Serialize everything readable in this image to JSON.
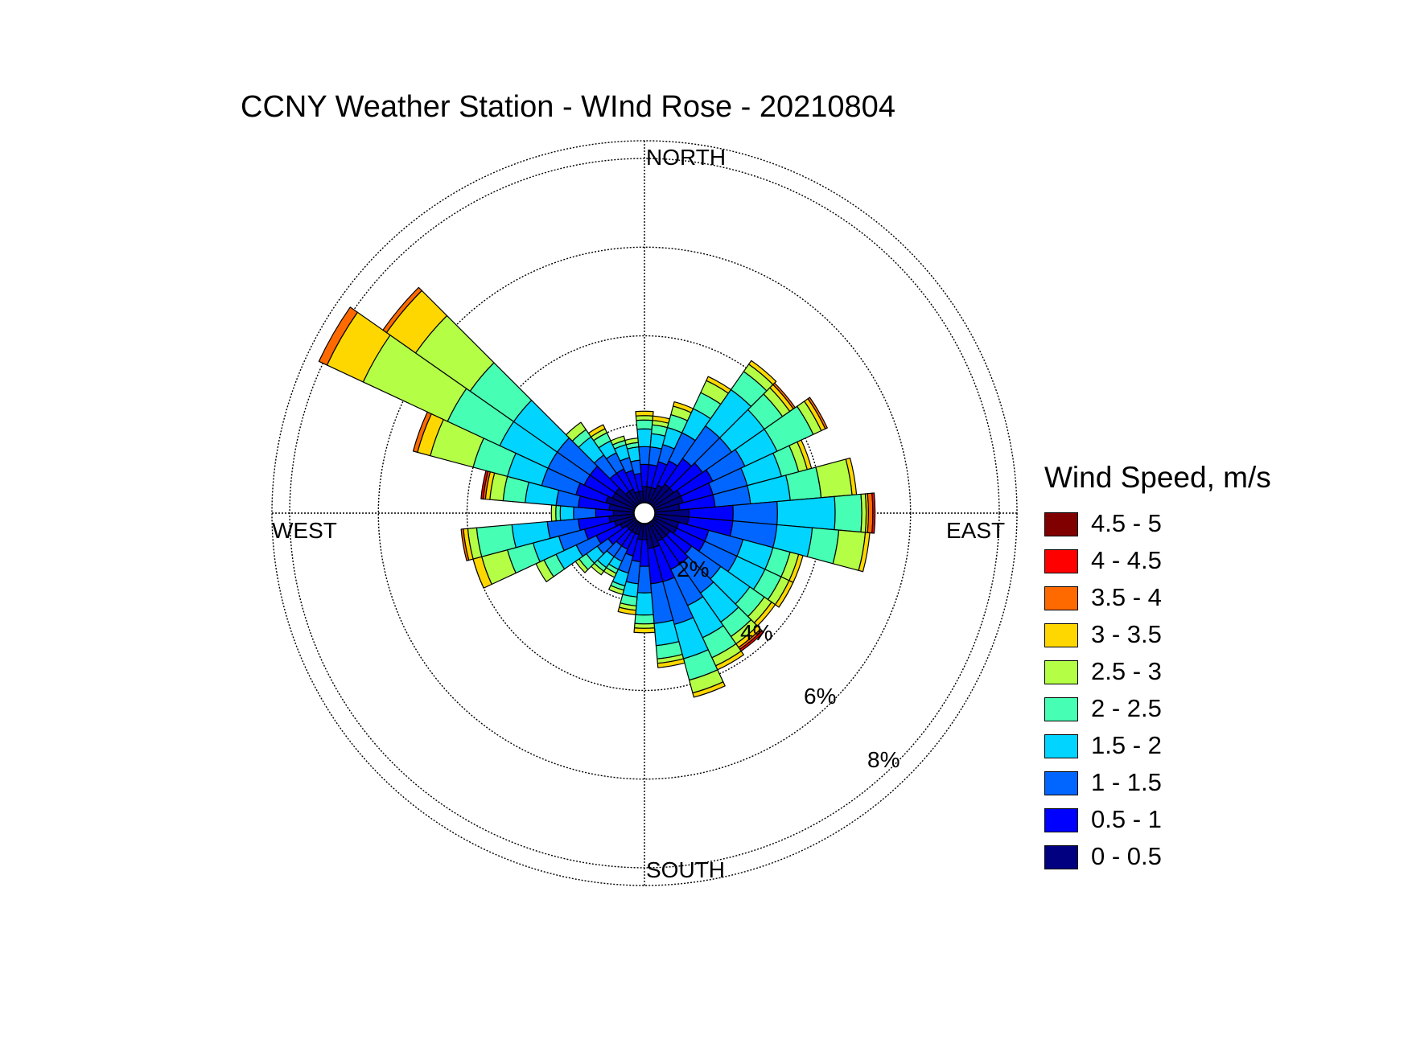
{
  "chart_data": {
    "type": "wind-rose",
    "title": "CCNY Weather Station - WInd Rose - 20210804",
    "directions": {
      "north": "NORTH",
      "south": "SOUTH",
      "east": "EAST",
      "west": "WEST"
    },
    "radial_labels": [
      "2%",
      "4%",
      "6%",
      "8%"
    ],
    "radial_ticks": [
      2,
      4,
      6,
      8
    ],
    "rmax": 8.4,
    "legend_title": "Wind Speed, m/s",
    "speed_bins": [
      {
        "label": "0 - 0.5",
        "color": "#000080"
      },
      {
        "label": "0.5 - 1",
        "color": "#0000ff"
      },
      {
        "label": "1 - 1.5",
        "color": "#0066ff"
      },
      {
        "label": "1.5 - 2",
        "color": "#00d4ff"
      },
      {
        "label": "2 - 2.5",
        "color": "#46ffb4"
      },
      {
        "label": "2.5 - 3",
        "color": "#b4ff46"
      },
      {
        "label": "3 - 3.5",
        "color": "#ffd700"
      },
      {
        "label": "3.5 - 4",
        "color": "#ff6a00"
      },
      {
        "label": "4 - 4.5",
        "color": "#ff0000"
      },
      {
        "label": "4.5 - 5",
        "color": "#800000"
      }
    ],
    "sector_width_deg": 10,
    "sectors": [
      {
        "dir": 0,
        "cum": [
          0.6,
          1.1,
          1.5,
          1.9,
          2.1,
          2.2,
          2.3
        ]
      },
      {
        "dir": 10,
        "cum": [
          0.6,
          1.1,
          1.5,
          1.8,
          2.0,
          2.1,
          2.2
        ]
      },
      {
        "dir": 20,
        "cum": [
          0.6,
          1.2,
          1.6,
          2.0,
          2.3,
          2.5,
          2.6
        ]
      },
      {
        "dir": 30,
        "cum": [
          0.7,
          1.3,
          2.0,
          2.6,
          3.0,
          3.3,
          3.4
        ]
      },
      {
        "dir": 40,
        "cum": [
          0.8,
          1.5,
          2.4,
          3.4,
          3.9,
          4.1,
          4.2
        ]
      },
      {
        "dir": 50,
        "cum": [
          0.8,
          1.6,
          2.4,
          3.3,
          3.8,
          4.0,
          4.1,
          4.15
        ]
      },
      {
        "dir": 60,
        "cum": [
          0.9,
          1.7,
          2.5,
          3.3,
          4.2,
          4.4,
          4.5,
          4.55
        ]
      },
      {
        "dir": 70,
        "cum": [
          0.9,
          1.6,
          2.4,
          3.2,
          3.6,
          3.8,
          3.9
        ]
      },
      {
        "dir": 80,
        "cum": [
          0.8,
          1.6,
          2.4,
          3.3,
          4.0,
          4.7,
          4.8
        ]
      },
      {
        "dir": 90,
        "cum": [
          1.0,
          2.0,
          3.0,
          4.3,
          4.9,
          5.0,
          5.05,
          5.15,
          5.2
        ]
      },
      {
        "dir": 100,
        "cum": [
          1.0,
          2.0,
          3.0,
          3.8,
          4.4,
          5.0,
          5.1
        ]
      },
      {
        "dir": 110,
        "cum": [
          0.8,
          1.5,
          2.3,
          3.0,
          3.4,
          3.6,
          3.7
        ]
      },
      {
        "dir": 120,
        "cum": [
          0.8,
          1.5,
          2.3,
          3.0,
          3.4,
          3.6,
          3.7
        ]
      },
      {
        "dir": 130,
        "cum": [
          0.7,
          1.3,
          2.1,
          2.9,
          3.3,
          3.5,
          3.6
        ]
      },
      {
        "dir": 140,
        "cum": [
          0.7,
          1.4,
          2.2,
          3.0,
          3.4,
          3.6,
          3.7,
          3.75,
          3.8
        ]
      },
      {
        "dir": 150,
        "cum": [
          0.7,
          1.4,
          2.3,
          3.1,
          3.6,
          3.8,
          3.9
        ]
      },
      {
        "dir": 160,
        "cum": [
          0.8,
          1.6,
          2.6,
          3.4,
          3.9,
          4.2,
          4.3
        ]
      },
      {
        "dir": 170,
        "cum": [
          0.8,
          1.6,
          2.5,
          3.0,
          3.3,
          3.4,
          3.5
        ]
      },
      {
        "dir": 180,
        "cum": [
          0.6,
          1.2,
          1.8,
          2.3,
          2.5,
          2.6,
          2.7
        ]
      },
      {
        "dir": 190,
        "cum": [
          0.6,
          1.1,
          1.6,
          1.9,
          2.1,
          2.2,
          2.3
        ]
      },
      {
        "dir": 200,
        "cum": [
          0.5,
          1.0,
          1.4,
          1.7,
          1.8,
          1.9
        ]
      },
      {
        "dir": 210,
        "cum": [
          0.5,
          0.9,
          1.2,
          1.4,
          1.5,
          1.6
        ]
      },
      {
        "dir": 220,
        "cum": [
          0.5,
          0.9,
          1.2,
          1.5,
          1.6,
          1.7
        ]
      },
      {
        "dir": 230,
        "cum": [
          0.5,
          1.0,
          1.3,
          1.6,
          1.8,
          1.9
        ]
      },
      {
        "dir": 240,
        "cum": [
          0.6,
          1.2,
          1.7,
          2.2,
          2.5,
          2.7
        ]
      },
      {
        "dir": 250,
        "cum": [
          0.7,
          1.4,
          2.0,
          2.6,
          3.2,
          3.8,
          4.0
        ]
      },
      {
        "dir": 260,
        "cum": [
          0.8,
          1.5,
          2.2,
          3.0,
          3.8,
          4.0,
          4.1,
          4.15
        ]
      },
      {
        "dir": 270,
        "cum": [
          0.7,
          1.1,
          1.6,
          1.9,
          2.0,
          2.1
        ]
      },
      {
        "dir": 280,
        "cum": [
          0.8,
          1.5,
          2.0,
          2.7,
          3.2,
          3.5,
          3.6,
          3.65,
          3.7
        ]
      },
      {
        "dir": 290,
        "cum": [
          0.9,
          1.6,
          2.4,
          3.2,
          4.0,
          5.0,
          5.3,
          5.4
        ]
      },
      {
        "dir": 300,
        "cum": [
          0.8,
          1.5,
          2.4,
          3.6,
          4.9,
          7.0,
          7.9,
          8.1
        ]
      },
      {
        "dir": 310,
        "cum": [
          0.8,
          1.5,
          2.4,
          3.6,
          4.8,
          6.3,
          7.1,
          7.2
        ]
      },
      {
        "dir": 320,
        "cum": [
          0.6,
          1.1,
          1.6,
          2.1,
          2.3,
          2.5
        ]
      },
      {
        "dir": 330,
        "cum": [
          0.6,
          1.1,
          1.5,
          1.8,
          2.0,
          2.1,
          2.2
        ]
      },
      {
        "dir": 340,
        "cum": [
          0.5,
          1.0,
          1.3,
          1.6,
          1.7,
          1.8
        ]
      },
      {
        "dir": 350,
        "cum": [
          0.5,
          0.9,
          1.2,
          1.5,
          1.6,
          1.7
        ]
      }
    ]
  }
}
